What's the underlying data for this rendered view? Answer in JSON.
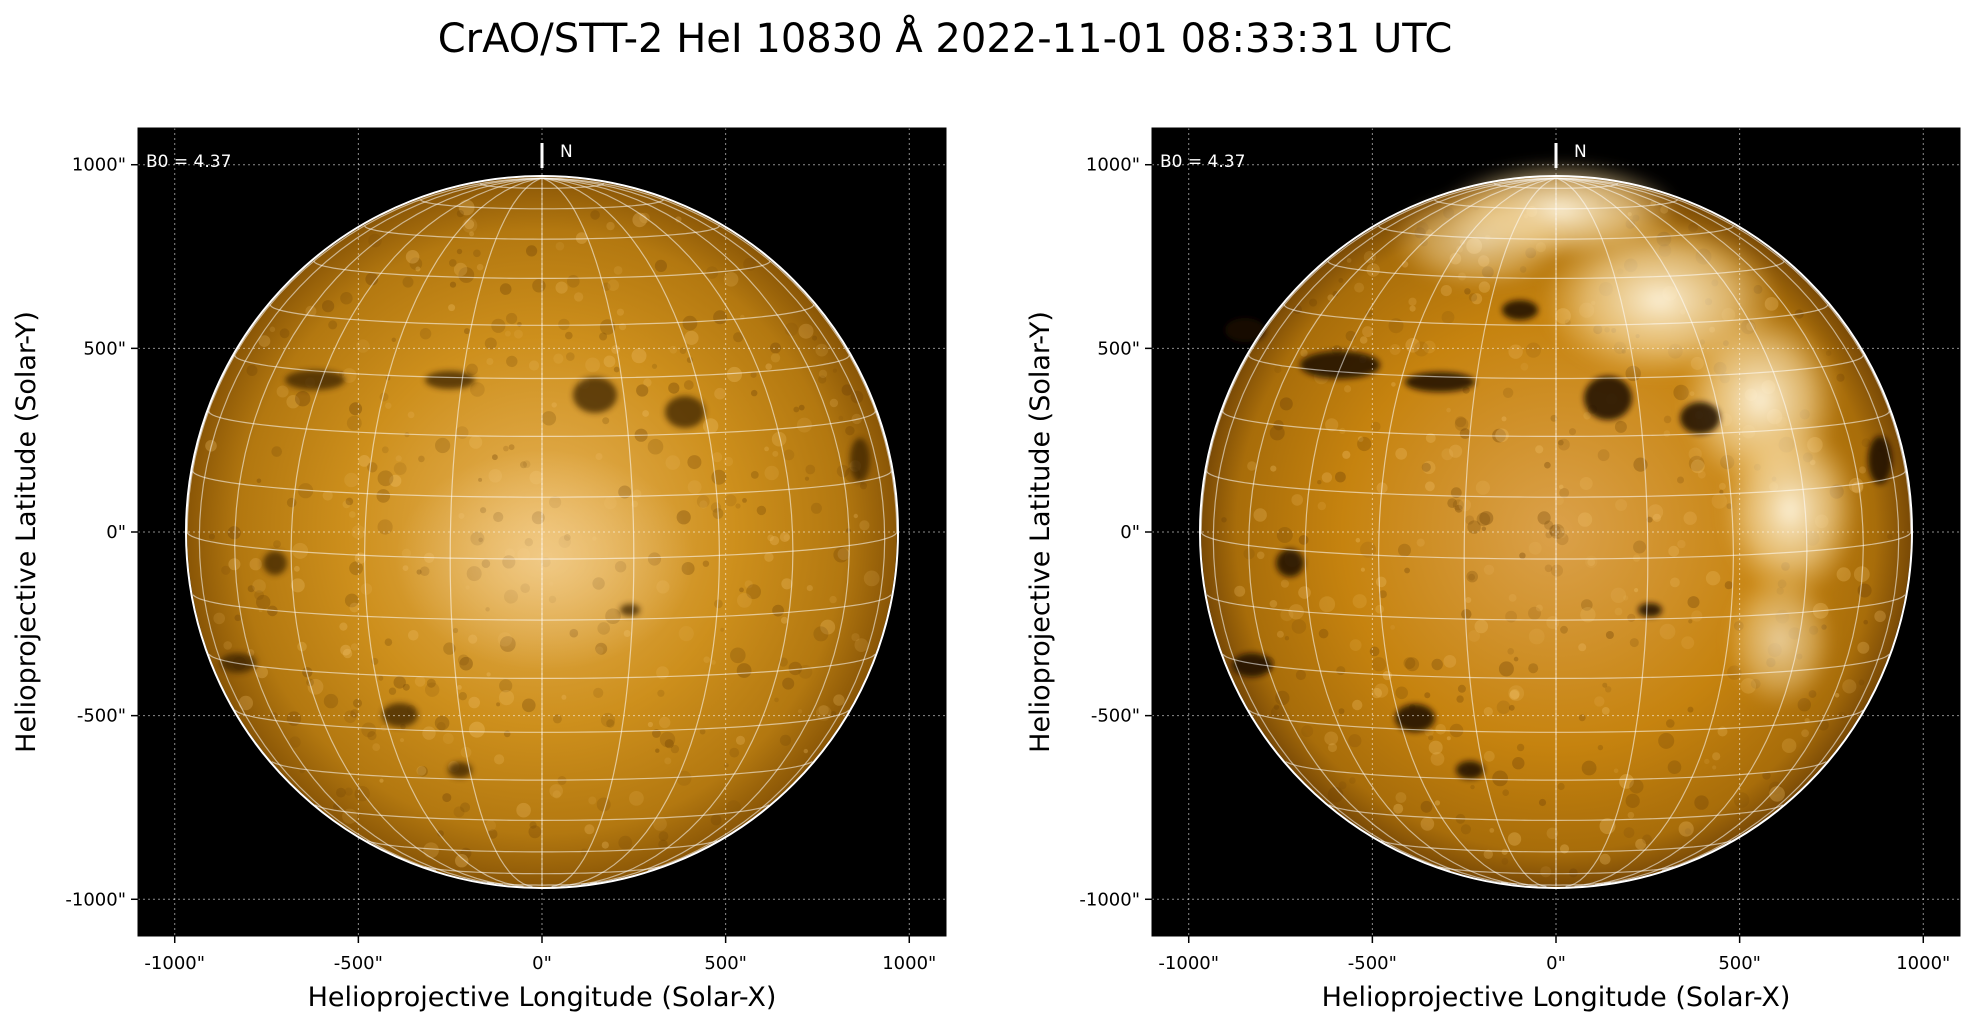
{
  "figure": {
    "title": "CrAO/STT-2 HeI 10830 Å 2022-11-01 08:33:31 UTC"
  },
  "axes": {
    "xlabel": "Helioprojective Longitude (Solar-X)",
    "ylabel": "Helioprojective Latitude (Solar-Y)",
    "x_ticks": [
      {
        "value": -1000,
        "label": "-1000\""
      },
      {
        "value": -500,
        "label": "-500\""
      },
      {
        "value": 0,
        "label": "0\""
      },
      {
        "value": 500,
        "label": "500\""
      },
      {
        "value": 1000,
        "label": "1000\""
      }
    ],
    "y_ticks": [
      {
        "value": 1000,
        "label": "1000\""
      },
      {
        "value": 500,
        "label": "500\""
      },
      {
        "value": 0,
        "label": "0\""
      },
      {
        "value": -500,
        "label": "-500\""
      },
      {
        "value": -1000,
        "label": "-1000\""
      }
    ],
    "xlim": [
      -1100,
      1100
    ],
    "ylim": [
      -1100,
      1100
    ],
    "grid": true
  },
  "panels": [
    {
      "b0_label": "B0 = 4.37",
      "north_label": "N",
      "b0_deg": 4.37,
      "solar_radius_arcsec": 966
    },
    {
      "b0_label": "B0 = 4.37",
      "north_label": "N",
      "b0_deg": 4.37,
      "solar_radius_arcsec": 966
    }
  ],
  "colors": {
    "background": "#000000",
    "disk_base": "#c7870f",
    "disk_light": "#f2c878",
    "disk_dark": "#7a4a06",
    "grid": "#ffffff"
  }
}
